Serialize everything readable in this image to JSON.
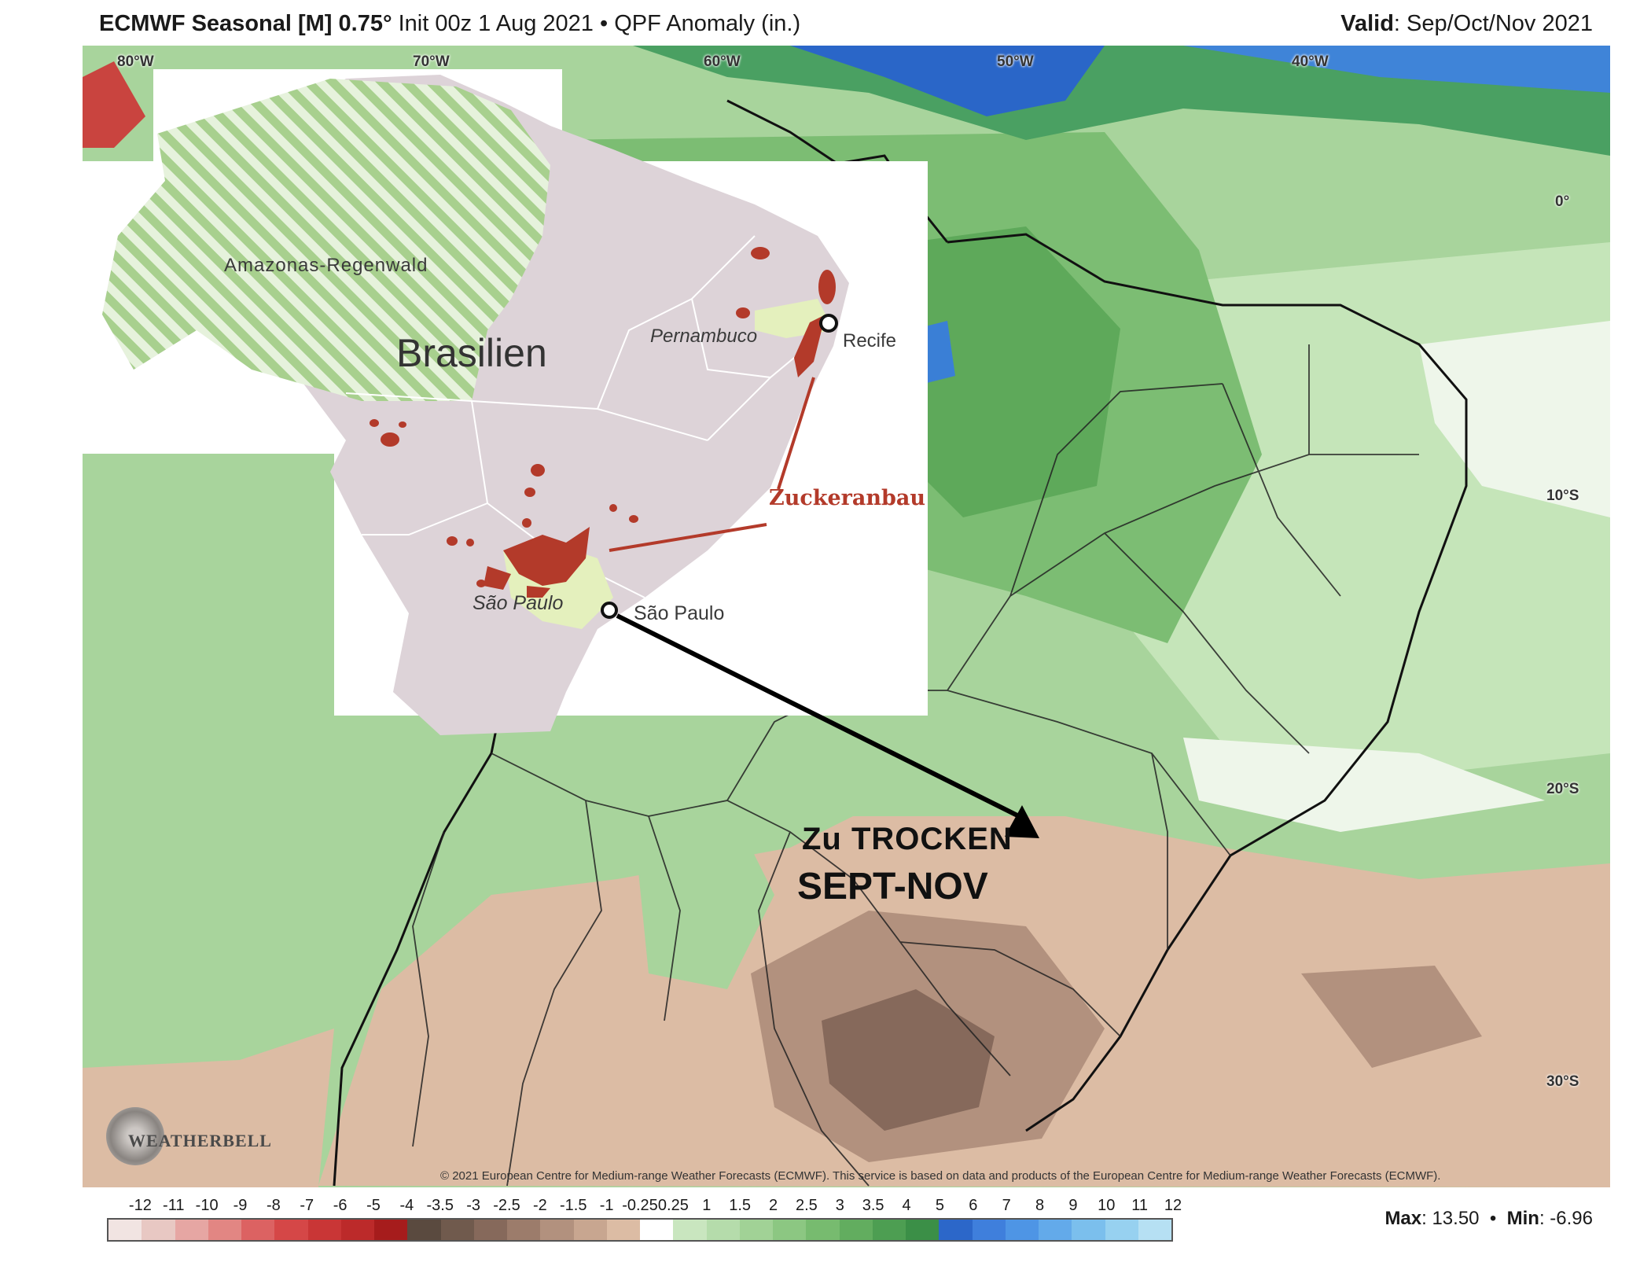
{
  "header": {
    "title": "ECMWF Seasonal [M] 0.75°",
    "init": "Init 00z 1 Aug 2021",
    "bullet": "•",
    "variable": "QPF Anomaly (in.)",
    "valid_label": "Valid",
    "valid_value": ": Sep/Oct/Nov 2021"
  },
  "map": {
    "longitude_labels": [
      "80°W",
      "70°W",
      "60°W",
      "50°W",
      "40°W"
    ],
    "latitude_labels": [
      "0°",
      "10°S",
      "20°S",
      "30°S"
    ],
    "copyright": "© 2021 European Centre for Medium-range Weather Forecasts (ECMWF). This service is based on data and products of the European Centre for Medium-range Weather Forecasts (ECMWF).",
    "logo_text": "WEATHERBELL"
  },
  "inset": {
    "region_label": "Amazonas-Regenwald",
    "country_label": "Brasilien",
    "state_label_1": "Pernambuco",
    "state_label_2": "São Paulo",
    "city_1": "Recife",
    "city_2": "São Paulo",
    "crop_label": "Zuckeranbau"
  },
  "annotation": {
    "line1": "Zu TROCKEN",
    "line2": "SEPT-NOV"
  },
  "colorbar": {
    "ticks": [
      "-12",
      "-11",
      "-10",
      "-9",
      "-8",
      "-7",
      "-6",
      "-5",
      "-4",
      "-3.5",
      "-3",
      "-2.5",
      "-2",
      "-1.5",
      "-1",
      "-0.25",
      "0.25",
      "1",
      "1.5",
      "2",
      "2.5",
      "3",
      "3.5",
      "4",
      "5",
      "6",
      "7",
      "8",
      "9",
      "10",
      "11",
      "12"
    ],
    "colors": [
      "#f1e4e2",
      "#e8c8c3",
      "#e6a6a3",
      "#e28683",
      "#dc6262",
      "#d54747",
      "#c93636",
      "#bc2a2a",
      "#a61c1c",
      "#5a4a3f",
      "#705a4d",
      "#86695b",
      "#9c7c6b",
      "#b2917e",
      "#c8a690",
      "#dcbca4",
      "#ffffff",
      "#c9e6bf",
      "#b5dcab",
      "#a1d296",
      "#8cc782",
      "#77bb6f",
      "#62ad5f",
      "#4d9e52",
      "#3b8f47",
      "#2c67c9",
      "#3f7fdc",
      "#4e95e5",
      "#63aaea",
      "#7bbfed",
      "#97d1f0",
      "#b6e0f3"
    ],
    "max_label": "Max",
    "max_value": ": 13.50",
    "min_label": "Min",
    "min_value": ": -6.96"
  }
}
